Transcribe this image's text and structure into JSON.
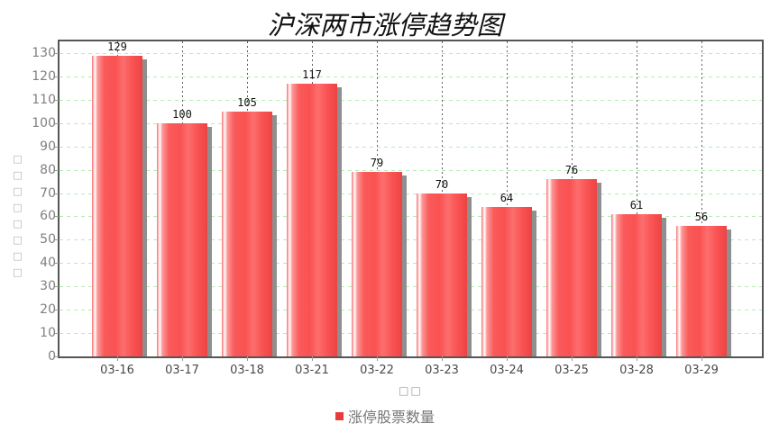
{
  "title": "沪深两市涨停趋势图",
  "y_axis_title": "□□□□□□□□",
  "x_axis_title": "□□",
  "legend": {
    "label": "涨停股票数量",
    "swatch_color": "#e83c3c"
  },
  "colors": {
    "bar_main": "#fa5454",
    "bar_highlight": "#ffffff",
    "bar_dark_edge": "#ee4242",
    "bar_shadow": "#8f8f8f",
    "grid_horizontal": "#b7ecb7",
    "grid_vertical": "#606060",
    "plot_border": "#555555",
    "y_tick_label": "#808080",
    "x_tick_label": "#4a4a4a",
    "value_label": "#111111",
    "legend_text": "#767676",
    "title_text": "#111111"
  },
  "chart_data": {
    "type": "bar",
    "title": "沪深两市涨停趋势图",
    "categories": [
      "03-16",
      "03-17",
      "03-18",
      "03-21",
      "03-22",
      "03-23",
      "03-24",
      "03-25",
      "03-28",
      "03-29"
    ],
    "values": [
      129,
      100,
      105,
      117,
      79,
      70,
      64,
      76,
      61,
      56
    ],
    "series": [
      {
        "name": "涨停股票数量",
        "values": [
          129,
          100,
          105,
          117,
          79,
          70,
          64,
          76,
          61,
          56
        ]
      }
    ],
    "xlabel": "□□",
    "ylabel": "□□□□□□□□",
    "ylim": [
      0,
      135
    ],
    "yticks": [
      0,
      10,
      20,
      30,
      40,
      50,
      60,
      70,
      80,
      90,
      100,
      110,
      120,
      130
    ],
    "grid": "dashed horizontal (light green) and vertical (dark gray) gridlines",
    "legend_position": "bottom",
    "bar_color": "#fa5454",
    "value_labels_shown": true
  }
}
